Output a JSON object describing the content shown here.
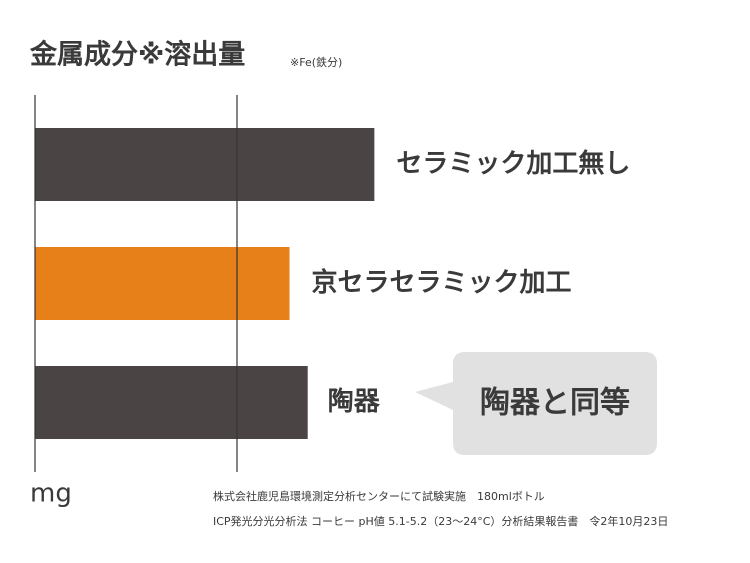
{
  "chart_data": {
    "type": "barh",
    "title": "金属成分※溶出量",
    "subtitle": "※Fe(鉄分)",
    "x_label": "mg",
    "categories": [
      "セラミック加工無し",
      "京セラセラミック加工",
      "陶器"
    ],
    "values": [
      1.68,
      1.26,
      1.35
    ],
    "colors": [
      "#4a4444",
      "#e8801a",
      "#4a4444"
    ],
    "xlim": [
      0,
      3.5
    ],
    "xticks": [
      0,
      1
    ],
    "grid": true,
    "annotation": "陶器と同等",
    "notes": [
      "株式会社鹿児島環境測定分析センターにて試験実施　180mlボトル",
      "ICP発光分光分析法 コーヒー pH値 5.1-5.2（23〜24°C）分析結果報告書　令2年10月23日"
    ]
  }
}
